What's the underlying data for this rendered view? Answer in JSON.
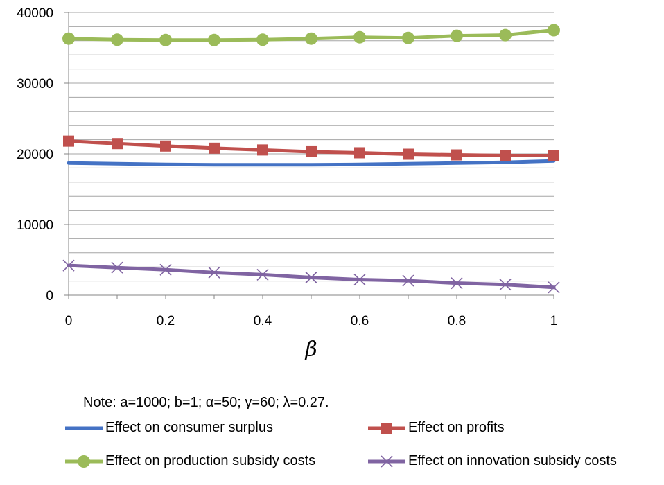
{
  "chart_data": {
    "type": "line",
    "x": [
      0,
      0.1,
      0.2,
      0.3,
      0.4,
      0.5,
      0.6,
      0.7,
      0.8,
      0.9,
      1
    ],
    "xticks": [
      "0",
      "0.2",
      "0.4",
      "0.6",
      "0.8",
      "1"
    ],
    "yticks": [
      "0",
      "10000",
      "20000",
      "30000",
      "40000"
    ],
    "xlabel": "β",
    "ylabel": "",
    "xlim": [
      0,
      1
    ],
    "ylim": [
      0,
      40000
    ],
    "grid": "horizontal",
    "legend_placement": "bottom",
    "series": [
      {
        "name": "Effect on consumer surplus",
        "color": "#4472C4",
        "marker": "none",
        "values": [
          18700,
          18600,
          18500,
          18450,
          18450,
          18450,
          18500,
          18600,
          18700,
          18800,
          19000
        ]
      },
      {
        "name": "Effect on profits",
        "color": "#C0504D",
        "marker": "square",
        "values": [
          21800,
          21450,
          21100,
          20800,
          20550,
          20300,
          20150,
          19950,
          19850,
          19750,
          19750
        ]
      },
      {
        "name": "Effect on production subsidy costs",
        "color": "#9BBB59",
        "marker": "circle",
        "values": [
          36300,
          36150,
          36100,
          36100,
          36150,
          36300,
          36500,
          36400,
          36700,
          36800,
          37500
        ]
      },
      {
        "name": "Effect on innovation subsidy costs",
        "color": "#8064A2",
        "marker": "x",
        "values": [
          4200,
          3900,
          3600,
          3200,
          2900,
          2500,
          2200,
          2050,
          1700,
          1500,
          1100
        ]
      }
    ]
  },
  "note": "Note: a=1000; b=1; α=50; γ=60; λ=0.27."
}
